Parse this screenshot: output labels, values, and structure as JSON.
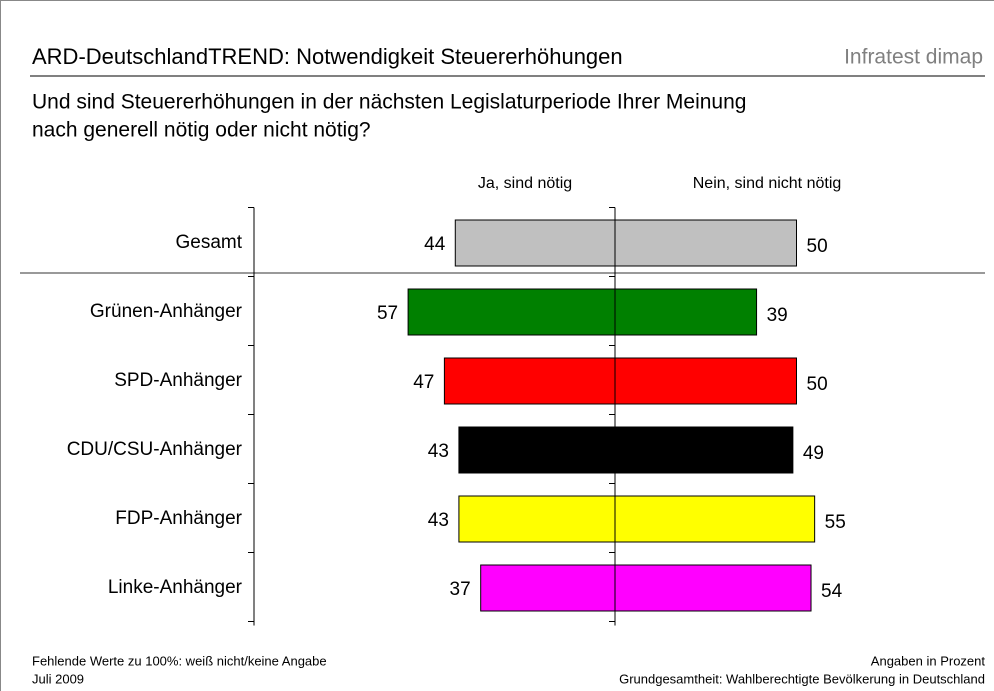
{
  "chart_data": {
    "type": "bar",
    "title": "ARD-DeutschlandTREND: Notwendigkeit Steuererhöhungen",
    "brand": "Infratest dimap",
    "subtitle": [
      "Und sind Steuererhöhungen in der nächsten Legislaturperiode Ihrer Meinung",
      "nach generell nötig oder nicht nötig?"
    ],
    "categories": [
      "Gesamt",
      "Grünen-Anhänger",
      "SPD-Anhänger",
      "CDU/CSU-Anhänger",
      "FDP-Anhänger",
      "Linke-Anhänger"
    ],
    "colors": [
      "#c0c0c0",
      "#008000",
      "#ff0000",
      "#000000",
      "#ffff00",
      "#ff00ff"
    ],
    "series": [
      {
        "name": "Ja, sind nötig",
        "values": [
          44,
          57,
          47,
          43,
          43,
          37
        ]
      },
      {
        "name": "Nein, sind nicht nötig",
        "values": [
          50,
          39,
          50,
          49,
          55,
          54
        ]
      }
    ],
    "notes_left": [
      "Fehlende Werte zu 100%: weiß nicht/keine Angabe",
      "Juli 2009"
    ],
    "notes_right": [
      "Angaben in Prozent",
      "Grundgesamtheit: Wahlberechtigte Bevölkerung in Deutschland"
    ]
  }
}
